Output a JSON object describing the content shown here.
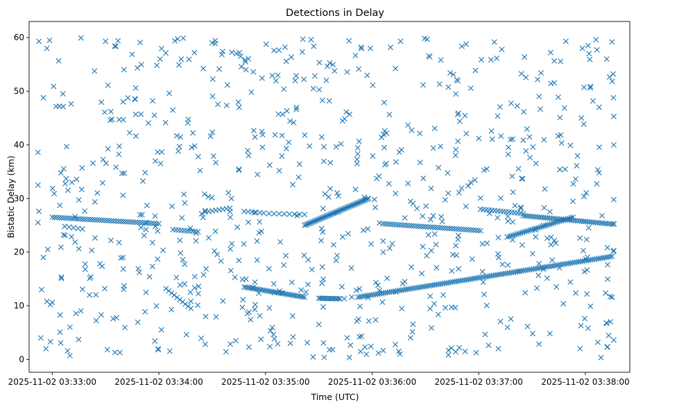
{
  "chart_data": {
    "type": "scatter",
    "title": "Detections in Delay",
    "xlabel": "Time (UTC)",
    "ylabel": "Bistatic Delay (km)",
    "x_unit": "seconds after 2025-11-02 03:33:00 UTC",
    "xlim": [
      -13,
      325
    ],
    "ylim": [
      -2.4,
      63
    ],
    "xticks": [
      0,
      60,
      120,
      180,
      240,
      300
    ],
    "xtick_labels": [
      "2025-11-02 03:33:00",
      "2025-11-02 03:34:00",
      "2025-11-02 03:35:00",
      "2025-11-02 03:36:00",
      "2025-11-02 03:37:00",
      "2025-11-02 03:38:00"
    ],
    "yticks": [
      0,
      10,
      20,
      30,
      40,
      50,
      60
    ],
    "ytick_labels": [
      "0",
      "10",
      "20",
      "30",
      "40",
      "50",
      "60"
    ],
    "marker": "x",
    "color": "#1f77b4",
    "grid": false,
    "series": [
      {
        "name": "",
        "tracks": [
          {
            "x_start": 0,
            "x_end": 60,
            "y_start": 26.5,
            "y_end": 25.3,
            "count": 46
          },
          {
            "x_start": 68,
            "x_end": 82,
            "y_start": 24.2,
            "y_end": 23.8,
            "count": 10
          },
          {
            "x_start": 86,
            "x_end": 100,
            "y_start": 27.5,
            "y_end": 28.2,
            "count": 8
          },
          {
            "x_start": 108,
            "x_end": 119,
            "y_start": 27.6,
            "y_end": 27.3,
            "count": 6
          },
          {
            "x_start": 122,
            "x_end": 142,
            "y_start": 27.2,
            "y_end": 27.0,
            "count": 8
          },
          {
            "x_start": 142,
            "x_end": 178,
            "y_start": 25.0,
            "y_end": 30.0,
            "count": 48
          },
          {
            "x_start": 186,
            "x_end": 241,
            "y_start": 25.3,
            "y_end": 24.0,
            "count": 42
          },
          {
            "x_start": 241,
            "x_end": 265,
            "y_start": 28.0,
            "y_end": 27.2,
            "count": 16
          },
          {
            "x_start": 256,
            "x_end": 293,
            "y_start": 22.8,
            "y_end": 26.5,
            "count": 35
          },
          {
            "x_start": 265,
            "x_end": 316,
            "y_start": 26.8,
            "y_end": 25.2,
            "count": 46
          },
          {
            "x_start": 108,
            "x_end": 142,
            "y_start": 13.5,
            "y_end": 11.6,
            "count": 34
          },
          {
            "x_start": 150,
            "x_end": 162,
            "y_start": 11.4,
            "y_end": 11.3,
            "count": 14
          },
          {
            "x_start": 172,
            "x_end": 315,
            "y_start": 11.6,
            "y_end": 19.2,
            "count": 130
          },
          {
            "x_start": 64,
            "x_end": 78,
            "y_start": 13.2,
            "y_end": 9.5,
            "count": 10
          },
          {
            "x_start": 7,
            "x_end": 17,
            "y_start": 24.8,
            "y_end": 24.3,
            "count": 5
          }
        ],
        "clutter": {
          "count": 700,
          "seed": 9137,
          "x_range": [
            0,
            316
          ],
          "y_range": [
            0.3,
            60
          ]
        },
        "points": [
          [
            -7.5,
            59.3
          ],
          [
            -5,
            48.8
          ],
          [
            -3,
            58.0
          ],
          [
            -1.5,
            59.5
          ],
          [
            -8,
            38.6
          ],
          [
            -8,
            32.5
          ],
          [
            -7.5,
            27.6
          ],
          [
            -8,
            25.5
          ],
          [
            -6,
            13.0
          ],
          [
            -6.5,
            4.0
          ],
          [
            -3.5,
            2.0
          ],
          [
            -3,
            10.8
          ],
          [
            -1,
            10.2
          ],
          [
            0,
            10.6
          ],
          [
            -1,
            3.3
          ],
          [
            -5,
            19.0
          ],
          [
            -2.5,
            20.5
          ],
          [
            4,
            47.2
          ],
          [
            6,
            49.5
          ],
          [
            10,
            6.0
          ],
          [
            10,
            0.7
          ],
          [
            21,
            12.0
          ],
          [
            31,
            1.8
          ],
          [
            30,
            59.3
          ],
          [
            37,
            59.4
          ],
          [
            47,
            50.6
          ],
          [
            53,
            25.5
          ],
          [
            58,
            24.8
          ],
          [
            73,
            26.4
          ],
          [
            90,
            59.0
          ],
          [
            109,
            54.0
          ],
          [
            131,
            58.2
          ],
          [
            141,
            59.7
          ],
          [
            167,
            59.4
          ],
          [
            179,
            58.0
          ],
          [
            196,
            59.3
          ],
          [
            211,
            59.7
          ],
          [
            253,
            57.8
          ],
          [
            289,
            59.3
          ],
          [
            306,
            59.6
          ],
          [
            315,
            59.2
          ],
          [
            312,
            56.0
          ],
          [
            134,
            3.0
          ],
          [
            156,
            1.8
          ],
          [
            176,
            2.3
          ],
          [
            195,
            1.5
          ],
          [
            223,
            1.7
          ],
          [
            251,
            2.0
          ],
          [
            297,
            2.0
          ],
          [
            307,
            3.2
          ],
          [
            312,
            6.7
          ],
          [
            315,
            11.6
          ],
          [
            316,
            20.3
          ],
          [
            316,
            29.8
          ],
          [
            316,
            40.0
          ],
          [
            316,
            45.3
          ],
          [
            316,
            3.6
          ],
          [
            314,
            11.7
          ],
          [
            316,
            25.3
          ],
          [
            69,
            59.4
          ],
          [
            80,
            57.2
          ],
          [
            70,
            41.7
          ],
          [
            61,
            36.5
          ]
        ]
      }
    ]
  }
}
